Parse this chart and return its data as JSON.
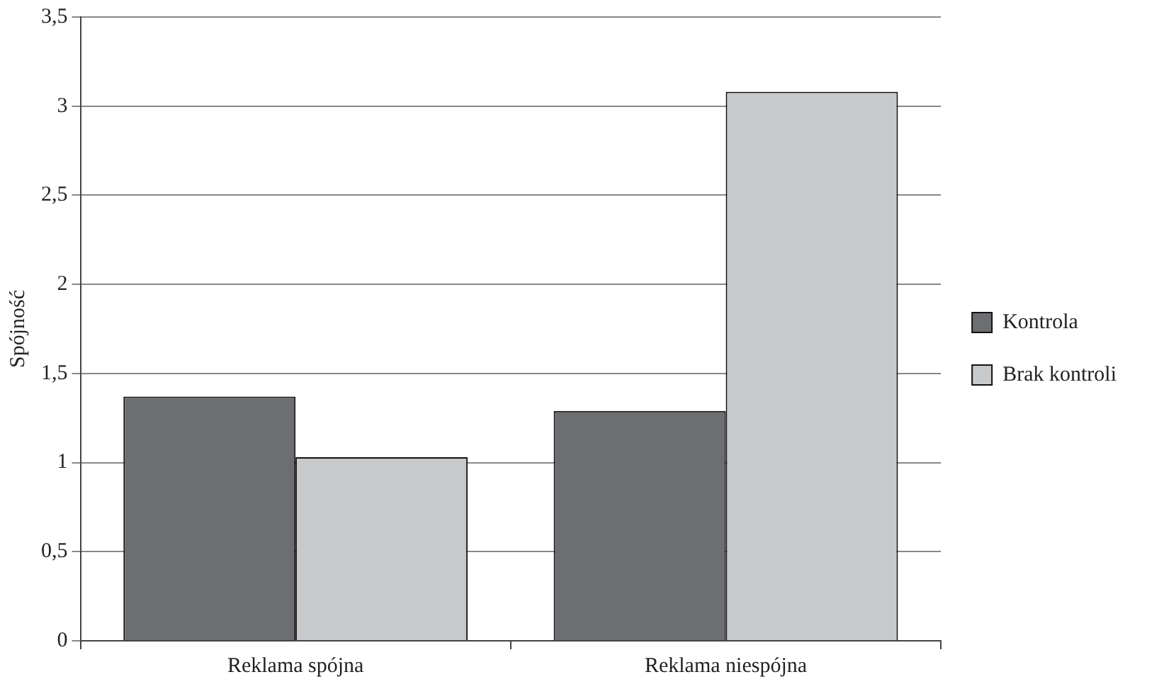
{
  "chart_data": {
    "type": "bar",
    "ylabel": "Spójność",
    "categories": [
      "Reklama spójna",
      "Reklama niespójna"
    ],
    "series": [
      {
        "name": "Kontrola",
        "color": "#6d6e71",
        "values": [
          1.37,
          1.29
        ]
      },
      {
        "name": "Brak kontroli",
        "color": "#c8c9cb",
        "values": [
          1.03,
          3.08
        ]
      }
    ],
    "ylim": [
      0,
      3.5
    ],
    "yticks": [
      0,
      {
        "value": 0.5,
        "label": "0,5"
      },
      1,
      {
        "value": 1.5,
        "label": "1,5"
      },
      2,
      {
        "value": 2.5,
        "label": "2,5"
      },
      3,
      {
        "value": 3.5,
        "label": "3,5"
      }
    ],
    "grid": "y",
    "legend": "right"
  }
}
